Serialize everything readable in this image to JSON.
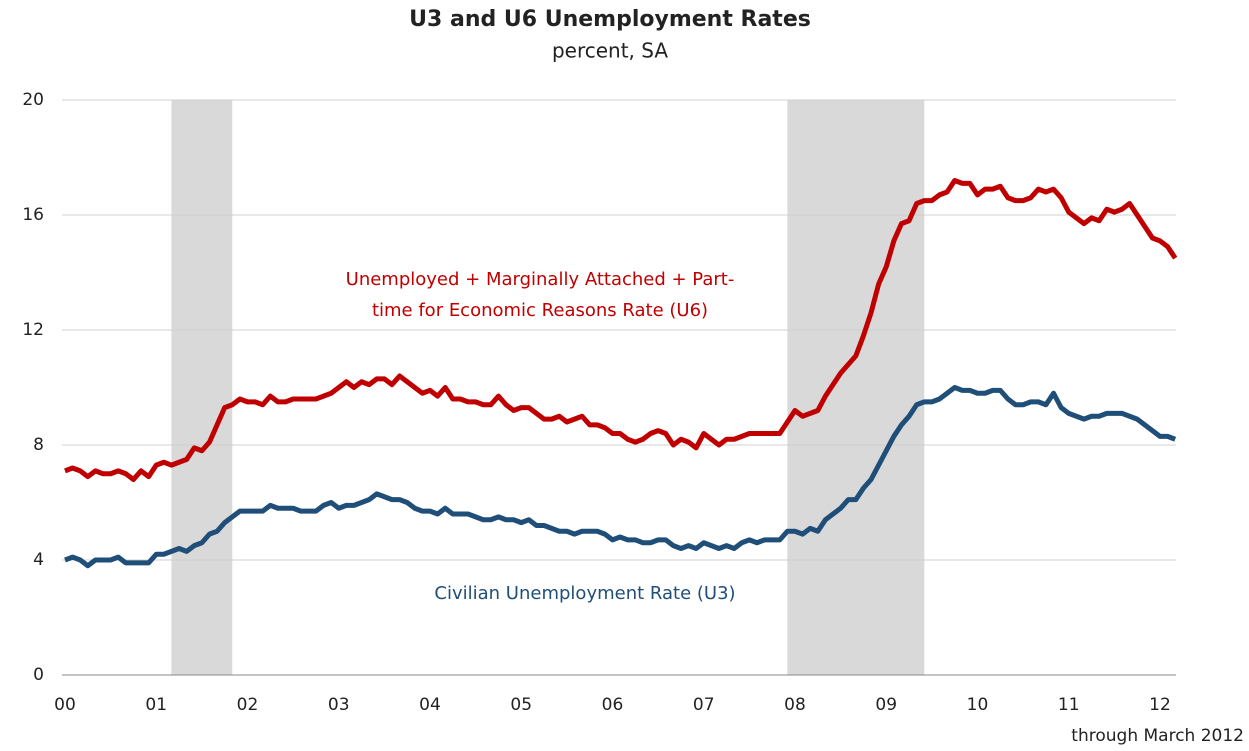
{
  "chart_data": {
    "type": "line",
    "title": "U3 and U6 Unemployment Rates",
    "subtitle": "percent, SA",
    "note": "through March 2012",
    "categories": [
      "00",
      null,
      null,
      null,
      null,
      null,
      null,
      null,
      null,
      null,
      null,
      null,
      "01",
      null,
      null,
      null,
      null,
      null,
      null,
      null,
      null,
      null,
      null,
      null,
      "02",
      null,
      null,
      null,
      null,
      null,
      null,
      null,
      null,
      null,
      null,
      null,
      "03",
      null,
      null,
      null,
      null,
      null,
      null,
      null,
      null,
      null,
      null,
      null,
      "04",
      null,
      null,
      null,
      null,
      null,
      null,
      null,
      null,
      null,
      null,
      null,
      "05",
      null,
      null,
      null,
      null,
      null,
      null,
      null,
      null,
      null,
      null,
      null,
      "06",
      null,
      null,
      null,
      null,
      null,
      null,
      null,
      null,
      null,
      null,
      null,
      "07",
      null,
      null,
      null,
      null,
      null,
      null,
      null,
      null,
      null,
      null,
      null,
      "08",
      null,
      null,
      null,
      null,
      null,
      null,
      null,
      null,
      null,
      null,
      null,
      "09",
      null,
      null,
      null,
      null,
      null,
      null,
      null,
      null,
      null,
      null,
      null,
      "10",
      null,
      null,
      null,
      null,
      null,
      null,
      null,
      null,
      null,
      null,
      null,
      "11",
      null,
      null,
      null,
      null,
      null,
      null,
      null,
      null,
      null,
      null,
      null,
      "12",
      null,
      null
    ],
    "shaded_ranges": [
      [
        14,
        22
      ],
      [
        95,
        113
      ]
    ],
    "series": [
      {
        "label_lines": [
          "Unemployed + Marginally Attached + Part-",
          "time for Economic Reasons Rate (U6)"
        ],
        "color": "#c00000",
        "values": [
          7.1,
          7.2,
          7.1,
          6.9,
          7.1,
          7.0,
          7.0,
          7.1,
          7.0,
          6.8,
          7.1,
          6.9,
          7.3,
          7.4,
          7.3,
          7.4,
          7.5,
          7.9,
          7.8,
          8.1,
          8.7,
          9.3,
          9.4,
          9.6,
          9.5,
          9.5,
          9.4,
          9.7,
          9.5,
          9.5,
          9.6,
          9.6,
          9.6,
          9.6,
          9.7,
          9.8,
          10.0,
          10.2,
          10.0,
          10.2,
          10.1,
          10.3,
          10.3,
          10.1,
          10.4,
          10.2,
          10.0,
          9.8,
          9.9,
          9.7,
          10.0,
          9.6,
          9.6,
          9.5,
          9.5,
          9.4,
          9.4,
          9.7,
          9.4,
          9.2,
          9.3,
          9.3,
          9.1,
          8.9,
          8.9,
          9.0,
          8.8,
          8.9,
          9.0,
          8.7,
          8.7,
          8.6,
          8.4,
          8.4,
          8.2,
          8.1,
          8.2,
          8.4,
          8.5,
          8.4,
          8.0,
          8.2,
          8.1,
          7.9,
          8.4,
          8.2,
          8.0,
          8.2,
          8.2,
          8.3,
          8.4,
          8.4,
          8.4,
          8.4,
          8.4,
          8.8,
          9.2,
          9.0,
          9.1,
          9.2,
          9.7,
          10.1,
          10.5,
          10.8,
          11.1,
          11.8,
          12.6,
          13.6,
          14.2,
          15.1,
          15.7,
          15.8,
          16.4,
          16.5,
          16.5,
          16.7,
          16.8,
          17.2,
          17.1,
          17.1,
          16.7,
          16.9,
          16.9,
          17.0,
          16.6,
          16.5,
          16.5,
          16.6,
          16.9,
          16.8,
          16.9,
          16.6,
          16.1,
          15.9,
          15.7,
          15.9,
          15.8,
          16.2,
          16.1,
          16.2,
          16.4,
          16.0,
          15.6,
          15.2,
          15.1,
          14.9,
          14.5
        ]
      },
      {
        "label_lines": [
          "Civilian Unemployment Rate (U3)"
        ],
        "color": "#1f4e79",
        "values": [
          4.0,
          4.1,
          4.0,
          3.8,
          4.0,
          4.0,
          4.0,
          4.1,
          3.9,
          3.9,
          3.9,
          3.9,
          4.2,
          4.2,
          4.3,
          4.4,
          4.3,
          4.5,
          4.6,
          4.9,
          5.0,
          5.3,
          5.5,
          5.7,
          5.7,
          5.7,
          5.7,
          5.9,
          5.8,
          5.8,
          5.8,
          5.7,
          5.7,
          5.7,
          5.9,
          6.0,
          5.8,
          5.9,
          5.9,
          6.0,
          6.1,
          6.3,
          6.2,
          6.1,
          6.1,
          6.0,
          5.8,
          5.7,
          5.7,
          5.6,
          5.8,
          5.6,
          5.6,
          5.6,
          5.5,
          5.4,
          5.4,
          5.5,
          5.4,
          5.4,
          5.3,
          5.4,
          5.2,
          5.2,
          5.1,
          5.0,
          5.0,
          4.9,
          5.0,
          5.0,
          5.0,
          4.9,
          4.7,
          4.8,
          4.7,
          4.7,
          4.6,
          4.6,
          4.7,
          4.7,
          4.5,
          4.4,
          4.5,
          4.4,
          4.6,
          4.5,
          4.4,
          4.5,
          4.4,
          4.6,
          4.7,
          4.6,
          4.7,
          4.7,
          4.7,
          5.0,
          5.0,
          4.9,
          5.1,
          5.0,
          5.4,
          5.6,
          5.8,
          6.1,
          6.1,
          6.5,
          6.8,
          7.3,
          7.8,
          8.3,
          8.7,
          9.0,
          9.4,
          9.5,
          9.5,
          9.6,
          9.8,
          10.0,
          9.9,
          9.9,
          9.8,
          9.8,
          9.9,
          9.9,
          9.6,
          9.4,
          9.4,
          9.5,
          9.5,
          9.4,
          9.8,
          9.3,
          9.1,
          9.0,
          8.9,
          9.0,
          9.0,
          9.1,
          9.1,
          9.1,
          9.0,
          8.9,
          8.7,
          8.5,
          8.3,
          8.3,
          8.2
        ]
      }
    ],
    "ylim": [
      0,
      20
    ],
    "yticks": [
      0,
      4,
      8,
      12,
      16,
      20
    ],
    "grid": true
  }
}
